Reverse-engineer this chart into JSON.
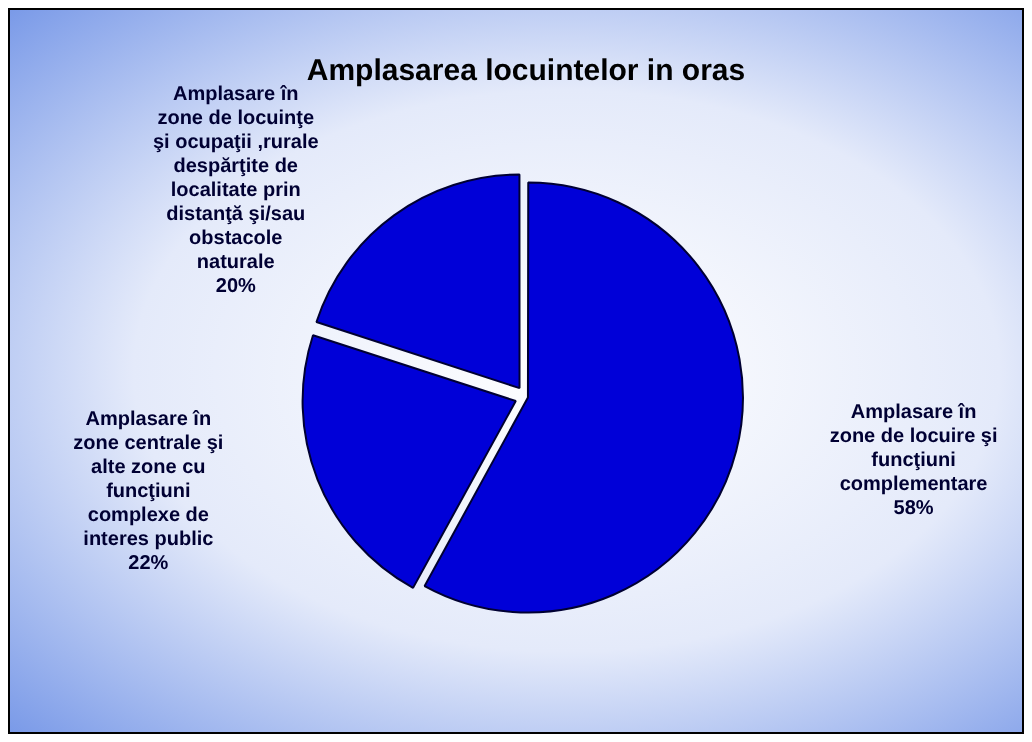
{
  "chart_data": {
    "type": "pie",
    "title": "Amplasarea locuintelor in oras",
    "categories": [
      "Amplasare în zone de locuire şi funcţiuni complementare",
      "Amplasare în zone centrale şi alte zone cu funcţiuni complexe de interes public",
      "Amplasare în zone de locuinţe şi ocupaţii ,rurale despărţite de localitate prin distanţă şi/sau obstacole naturale"
    ],
    "values": [
      58,
      22,
      20
    ],
    "value_labels": [
      "58%",
      "22%",
      "20%"
    ],
    "colors": [
      "#0000d8",
      "#0000d8",
      "#0000d8"
    ],
    "legend": false
  }
}
